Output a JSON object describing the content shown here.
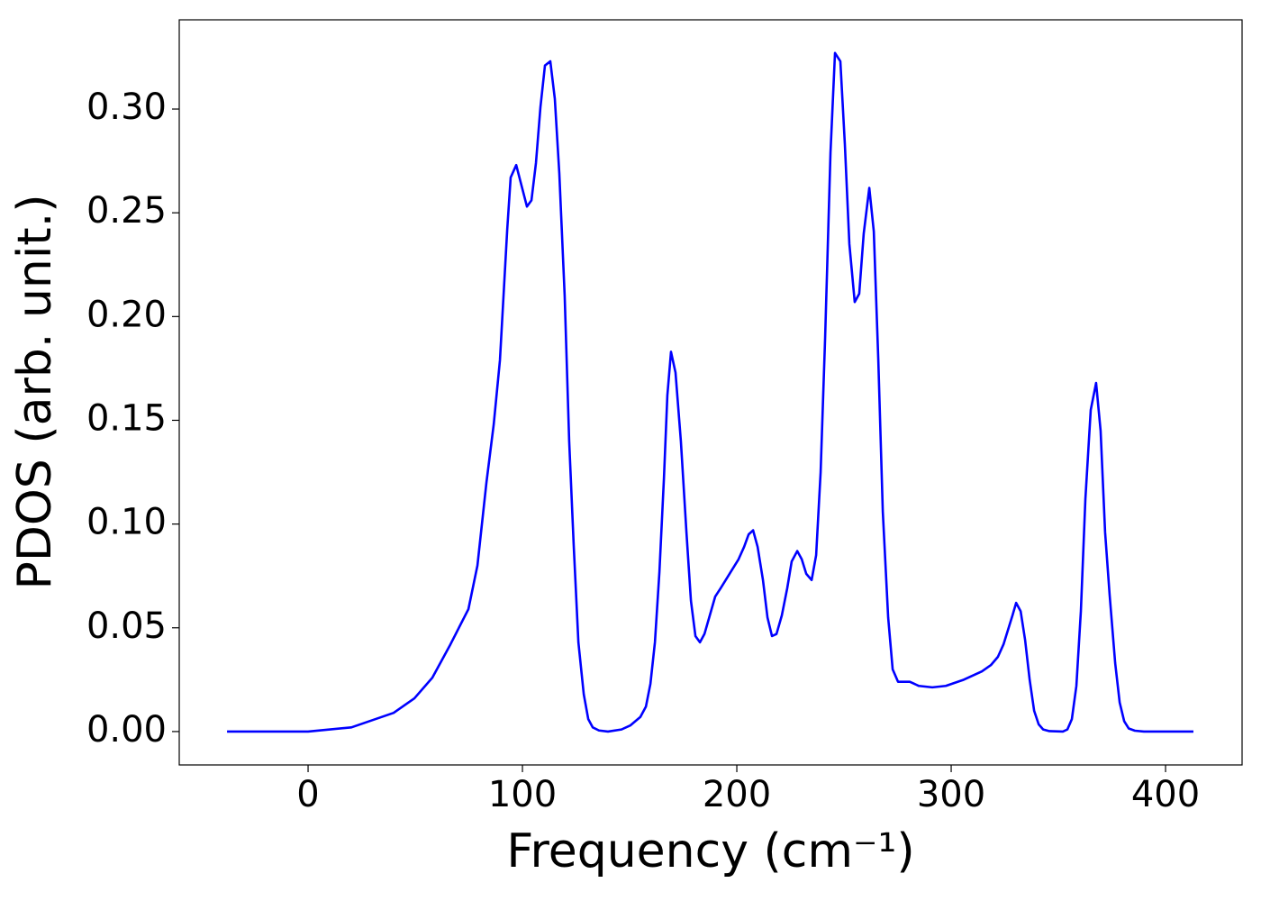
{
  "chart_data": {
    "type": "line",
    "x_label": "Frequency (cm⁻¹)",
    "y_label": "PDOS (arb. unit.)",
    "xlim": [
      -60.1,
      435.7
    ],
    "ylim": [
      -0.0161,
      0.343
    ],
    "xticks": [
      0,
      100,
      200,
      300,
      400
    ],
    "yticks": [
      {
        "value": 0,
        "label": "0.00"
      },
      {
        "value": 0.05,
        "label": "0.05"
      },
      {
        "value": 0.1,
        "label": "0.10"
      },
      {
        "value": 0.15,
        "label": "0.15"
      },
      {
        "value": 0.2,
        "label": "0.20"
      },
      {
        "value": 0.25,
        "label": "0.25"
      },
      {
        "value": 0.3,
        "label": "0.30"
      }
    ],
    "grid": false,
    "x": [
      -37.8,
      0,
      20.2,
      39.9,
      49.6,
      58.0,
      66.4,
      74.8,
      79.0,
      83.2,
      86.6,
      89.5,
      92.9,
      94.5,
      97.1,
      102.1,
      104.2,
      106.3,
      108.4,
      110.5,
      113.0,
      115.1,
      117.2,
      119.7,
      121.8,
      123.9,
      126.1,
      128.6,
      130.7,
      132.8,
      135.7,
      139.9,
      146.2,
      150.4,
      155.0,
      157.6,
      159.7,
      161.8,
      163.9,
      166.0,
      167.6,
      169.3,
      171.4,
      173.9,
      176.5,
      178.6,
      180.7,
      182.8,
      184.9,
      187.4,
      189.9,
      192.4,
      196.6,
      200.8,
      203.4,
      205.5,
      207.6,
      209.7,
      212.2,
      214.3,
      216.4,
      218.5,
      221.0,
      223.5,
      225.6,
      228.2,
      230.3,
      232.4,
      234.9,
      237.0,
      239.1,
      241.2,
      243.7,
      245.8,
      248.3,
      250.4,
      252.5,
      255.0,
      257.1,
      259.2,
      261.8,
      263.9,
      266.0,
      268.1,
      270.6,
      272.7,
      275.2,
      280.7,
      284.9,
      291.2,
      297.5,
      305.9,
      314.3,
      318.5,
      321.8,
      324.4,
      326.5,
      328.6,
      330.3,
      332.4,
      334.5,
      336.6,
      338.7,
      340.8,
      342.9,
      345.8,
      352.1,
      354.2,
      356.3,
      358.4,
      360.5,
      362.6,
      365.1,
      367.6,
      369.7,
      371.8,
      373.9,
      376.5,
      378.6,
      380.7,
      382.8,
      385.7,
      389.9,
      413.0
    ],
    "series": [
      {
        "name": "PDOS",
        "color": "#0000ff",
        "values": [
          0,
          0,
          0.002,
          0.009,
          0.016,
          0.026,
          0.042,
          0.059,
          0.08,
          0.12,
          0.148,
          0.179,
          0.242,
          0.267,
          0.273,
          0.253,
          0.256,
          0.274,
          0.301,
          0.321,
          0.323,
          0.305,
          0.269,
          0.21,
          0.14,
          0.09,
          0.043,
          0.018,
          0.006,
          0.002,
          0.0005,
          0,
          0.001,
          0.003,
          0.007,
          0.012,
          0.023,
          0.043,
          0.077,
          0.122,
          0.162,
          0.183,
          0.173,
          0.14,
          0.096,
          0.063,
          0.046,
          0.043,
          0.047,
          0.056,
          0.065,
          0.069,
          0.076,
          0.083,
          0.089,
          0.095,
          0.097,
          0.089,
          0.073,
          0.055,
          0.046,
          0.047,
          0.056,
          0.069,
          0.082,
          0.087,
          0.083,
          0.076,
          0.073,
          0.085,
          0.125,
          0.19,
          0.279,
          0.327,
          0.323,
          0.283,
          0.235,
          0.207,
          0.211,
          0.24,
          0.262,
          0.241,
          0.179,
          0.106,
          0.055,
          0.03,
          0.024,
          0.024,
          0.022,
          0.0213,
          0.022,
          0.025,
          0.029,
          0.032,
          0.036,
          0.042,
          0.049,
          0.056,
          0.062,
          0.058,
          0.044,
          0.025,
          0.01,
          0.0035,
          0.001,
          0.0002,
          0,
          0.001,
          0.006,
          0.022,
          0.058,
          0.112,
          0.155,
          0.168,
          0.145,
          0.096,
          0.066,
          0.033,
          0.014,
          0.005,
          0.0015,
          0.0004,
          0,
          0
        ]
      }
    ]
  }
}
